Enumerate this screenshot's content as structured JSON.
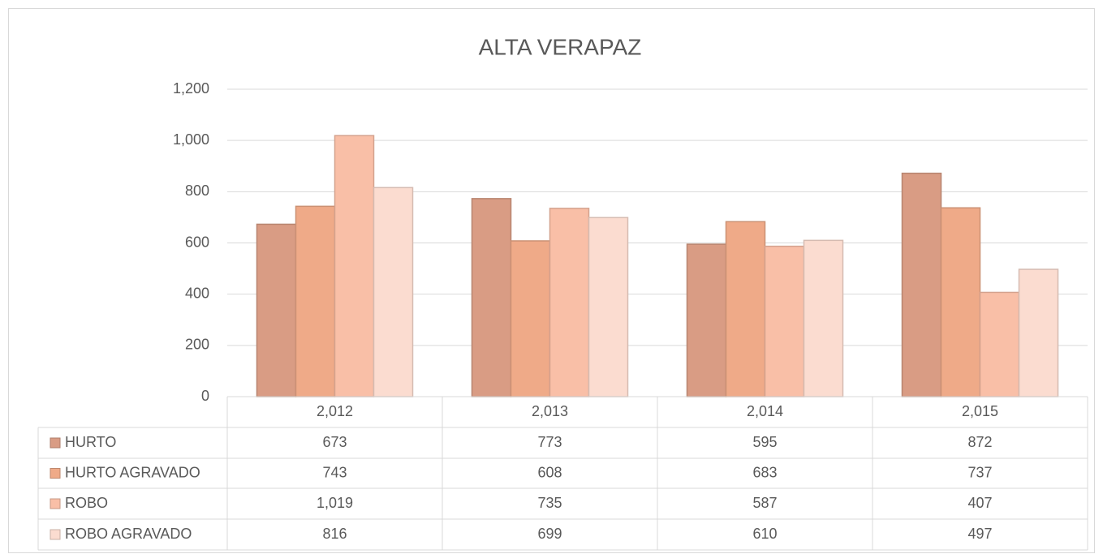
{
  "chart_data": {
    "type": "bar",
    "title": "ALTA VERAPAZ",
    "categories": [
      "2,012",
      "2,013",
      "2,014",
      "2,015"
    ],
    "series": [
      {
        "name": "HURTO",
        "color": "#d99c84",
        "values": [
          673,
          773,
          595,
          872
        ],
        "value_labels": [
          "673",
          "773",
          "595",
          "872"
        ]
      },
      {
        "name": "HURTO AGRAVADO",
        "color": "#efaa88",
        "values": [
          743,
          608,
          683,
          737
        ],
        "value_labels": [
          "743",
          "608",
          "683",
          "737"
        ]
      },
      {
        "name": "ROBO",
        "color": "#f9bfa7",
        "values": [
          1019,
          735,
          587,
          407
        ],
        "value_labels": [
          "1,019",
          "735",
          "587",
          "407"
        ]
      },
      {
        "name": "ROBO AGRAVADO",
        "color": "#fbdcd0",
        "values": [
          816,
          699,
          610,
          497
        ],
        "value_labels": [
          "816",
          "699",
          "610",
          "497"
        ]
      }
    ],
    "ylim": [
      0,
      1200
    ],
    "yticks": [
      0,
      200,
      400,
      600,
      800,
      {
        "value": 1000,
        "label": "1,000"
      },
      {
        "value": 1200,
        "label": "1,200"
      }
    ],
    "grid": true
  }
}
